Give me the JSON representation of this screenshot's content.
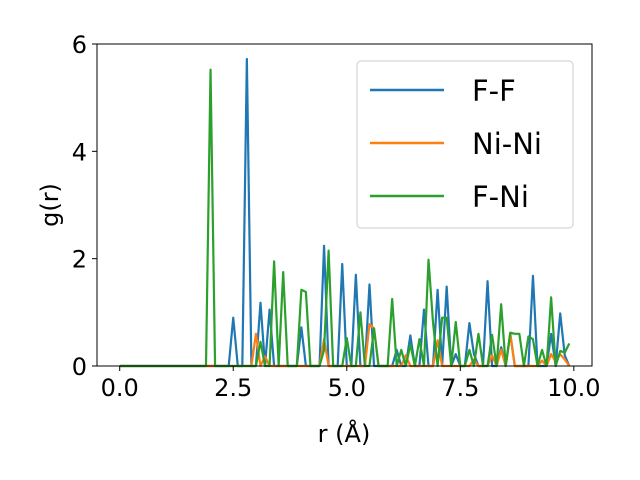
{
  "chart_data": {
    "type": "line",
    "title": "",
    "xlabel": "r (Å)",
    "ylabel": "g(r)",
    "xlim": [
      -0.5,
      10.4
    ],
    "ylim": [
      0,
      6
    ],
    "x_ticks": [
      "0.0",
      "2.5",
      "5.0",
      "7.5",
      "10.0"
    ],
    "x_tick_values": [
      0,
      2.5,
      5,
      7.5,
      10
    ],
    "y_ticks": [
      "0",
      "2",
      "4",
      "6"
    ],
    "y_tick_values": [
      0,
      2,
      4,
      6
    ],
    "grid": false,
    "legend_position": "top-right",
    "series": [
      {
        "name": "F-F",
        "color": "#1f77b4",
        "x": [
          0,
          1.0,
          2.0,
          2.3,
          2.4,
          2.5,
          2.6,
          2.7,
          2.8,
          2.9,
          3.0,
          3.1,
          3.2,
          3.3,
          3.4,
          3.5,
          3.6,
          3.7,
          3.8,
          3.9,
          4.0,
          4.1,
          4.2,
          4.3,
          4.4,
          4.5,
          4.6,
          4.7,
          4.8,
          4.9,
          5.0,
          5.1,
          5.2,
          5.3,
          5.4,
          5.5,
          5.6,
          5.7,
          5.8,
          5.9,
          6.0,
          6.1,
          6.2,
          6.3,
          6.4,
          6.5,
          6.6,
          6.7,
          6.8,
          6.9,
          7.0,
          7.1,
          7.2,
          7.3,
          7.4,
          7.5,
          7.6,
          7.7,
          7.8,
          7.9,
          8.0,
          8.1,
          8.2,
          8.3,
          8.4,
          8.5,
          8.6,
          8.7,
          8.8,
          8.9,
          9.0,
          9.1,
          9.2,
          9.3,
          9.4,
          9.5,
          9.6,
          9.7,
          9.8,
          9.9
        ],
        "y": [
          0,
          0,
          0,
          0,
          0,
          0.9,
          0,
          0,
          5.72,
          0,
          0,
          1.18,
          0,
          1.05,
          0,
          0,
          0,
          0,
          0,
          0,
          0.72,
          0,
          0,
          0,
          0,
          2.24,
          0,
          0,
          0,
          1.9,
          0,
          0,
          1.7,
          0,
          0,
          1.52,
          0,
          0,
          0,
          0,
          0,
          0.3,
          0,
          0,
          0.57,
          0,
          0,
          1.05,
          0,
          0,
          1.42,
          0,
          1.48,
          0,
          0.22,
          0,
          0,
          0.8,
          0.22,
          0,
          0,
          1.58,
          0,
          0,
          0.35,
          0,
          0.6,
          0,
          0,
          0,
          0,
          1.68,
          0,
          0,
          0,
          0.6,
          0,
          0.98,
          0.2,
          0
        ]
      },
      {
        "name": "Ni-Ni",
        "color": "#ff7f0e",
        "x": [
          0,
          2.0,
          2.9,
          3.0,
          3.1,
          3.2,
          3.3,
          3.4,
          4.4,
          4.5,
          4.6,
          5.0,
          5.4,
          5.5,
          5.6,
          5.7,
          6.2,
          6.3,
          6.4,
          6.5,
          6.9,
          7.0,
          7.1,
          7.2,
          7.7,
          7.8,
          7.9,
          8.1,
          8.2,
          8.3,
          8.4,
          8.5,
          8.6,
          8.7,
          8.8,
          9.2,
          9.3,
          9.4,
          9.5,
          9.6,
          9.7,
          9.8,
          9.9
        ],
        "y": [
          0,
          0,
          0,
          0.6,
          0,
          0.18,
          0,
          0,
          0,
          0.5,
          0,
          0,
          0,
          0.78,
          0.7,
          0,
          0,
          0.2,
          0,
          0,
          0,
          0.48,
          0,
          0,
          0,
          0.12,
          0,
          0,
          0.2,
          0,
          0.3,
          0,
          0.6,
          0,
          0,
          0,
          0.1,
          0,
          0.22,
          0.08,
          0.22,
          0.12,
          0
        ]
      },
      {
        "name": "F-Ni",
        "color": "#2ca02c",
        "x": [
          0,
          1.0,
          1.8,
          1.9,
          2.0,
          2.1,
          2.2,
          3.0,
          3.1,
          3.2,
          3.3,
          3.4,
          3.5,
          3.6,
          3.7,
          3.8,
          3.9,
          4.0,
          4.1,
          4.2,
          4.3,
          4.4,
          4.5,
          4.6,
          4.7,
          4.8,
          4.9,
          5.0,
          5.1,
          5.2,
          5.3,
          5.4,
          5.5,
          5.6,
          5.7,
          5.8,
          5.9,
          6.0,
          6.1,
          6.2,
          6.3,
          6.4,
          6.5,
          6.6,
          6.7,
          6.8,
          6.9,
          7.0,
          7.1,
          7.2,
          7.3,
          7.4,
          7.5,
          7.6,
          7.7,
          7.8,
          7.9,
          8.0,
          8.1,
          8.2,
          8.3,
          8.4,
          8.5,
          8.6,
          8.7,
          8.8,
          8.9,
          9.0,
          9.1,
          9.2,
          9.3,
          9.4,
          9.5,
          9.6,
          9.7,
          9.8,
          9.9
        ],
        "y": [
          0,
          0,
          0,
          0,
          5.52,
          0,
          0,
          0,
          0.45,
          0,
          0,
          1.95,
          0,
          1.75,
          0,
          0,
          0,
          1.42,
          1.38,
          0,
          0,
          0,
          0.3,
          2.15,
          0,
          0,
          0,
          0.52,
          0,
          0,
          1.0,
          0,
          0,
          0.7,
          0,
          0,
          0,
          1.25,
          0,
          0.3,
          0,
          0.4,
          0,
          0.5,
          0,
          1.98,
          0.8,
          0,
          0.9,
          0.9,
          0,
          0.82,
          0,
          0,
          0.3,
          0,
          0.6,
          0,
          0,
          0.58,
          0,
          1.15,
          0,
          0.62,
          0.6,
          0.6,
          0,
          0.55,
          0.5,
          0,
          0.3,
          0,
          1.28,
          0,
          0.28,
          0.25,
          0.42
        ]
      }
    ]
  }
}
